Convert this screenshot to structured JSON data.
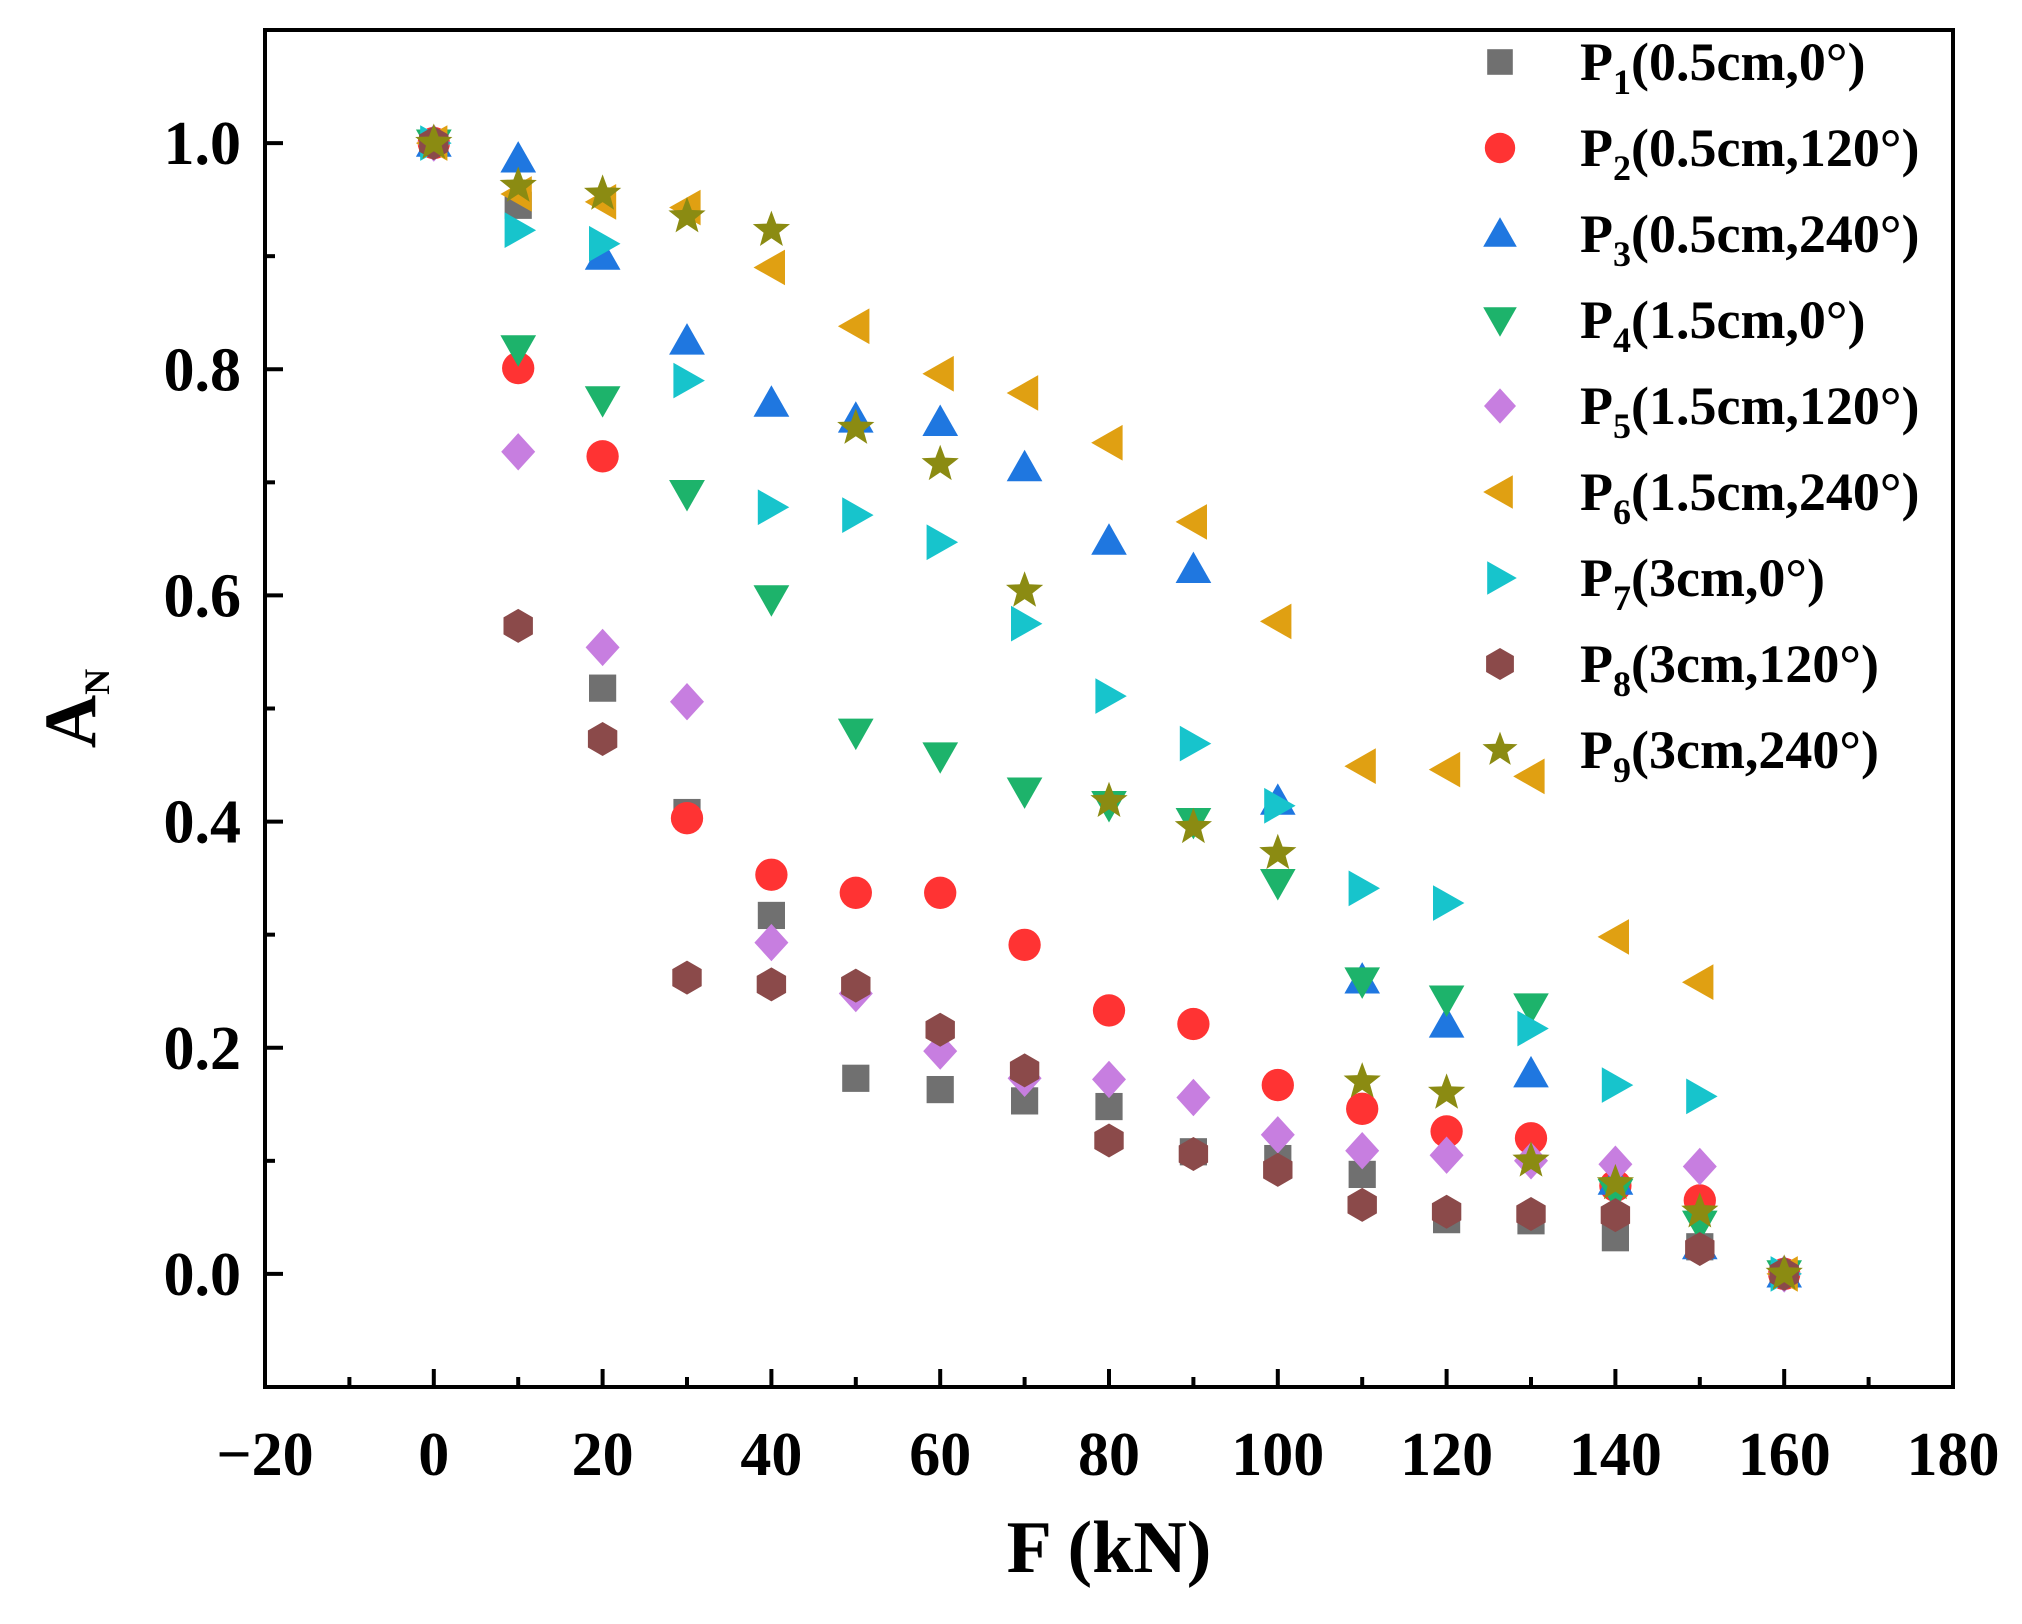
{
  "chart_data": {
    "type": "scatter",
    "xlabel": "F (kN)",
    "ylabel": {
      "main": "A",
      "sub": "N"
    },
    "xlim": [
      -20,
      180
    ],
    "ylim": [
      -0.1,
      1.1
    ],
    "x_ticks": [
      -20,
      0,
      20,
      40,
      60,
      80,
      100,
      120,
      140,
      160,
      180
    ],
    "x_tick_labels": [
      "−20",
      "0",
      "20",
      "40",
      "60",
      "80",
      "100",
      "120",
      "140",
      "160",
      "180"
    ],
    "y_ticks": [
      0.0,
      0.2,
      0.4,
      0.6,
      0.8,
      1.0
    ],
    "y_tick_labels": [
      "0.0",
      "0.2",
      "0.4",
      "0.6",
      "0.8",
      "1.0"
    ],
    "grid": false,
    "legend_position": "top-right",
    "series": [
      {
        "name": "P1(0.5cm,0°)",
        "label_main": "P",
        "label_sub": "1",
        "label_rest": "(0.5cm,0°)",
        "marker": "square",
        "color": "#707070",
        "x": [
          0,
          10,
          20,
          30,
          40,
          50,
          60,
          70,
          80,
          90,
          100,
          110,
          120,
          130,
          140,
          150,
          160
        ],
        "y": [
          1.0,
          0.945,
          0.518,
          0.408,
          0.317,
          0.173,
          0.163,
          0.153,
          0.148,
          0.108,
          0.102,
          0.088,
          0.048,
          0.047,
          0.032,
          0.024,
          0.0
        ]
      },
      {
        "name": "P2(0.5cm,120°)",
        "label_main": "P",
        "label_sub": "2",
        "label_rest": "(0.5cm,120°)",
        "marker": "circle",
        "color": "#ff3333",
        "x": [
          0,
          10,
          20,
          30,
          40,
          50,
          60,
          70,
          80,
          90,
          100,
          110,
          120,
          130,
          140,
          150,
          160
        ],
        "y": [
          1.0,
          0.801,
          0.723,
          0.403,
          0.353,
          0.337,
          0.337,
          0.291,
          0.233,
          0.221,
          0.167,
          0.146,
          0.126,
          0.12,
          0.078,
          0.065,
          0.0
        ]
      },
      {
        "name": "P3(0.5cm,240°)",
        "label_main": "P",
        "label_sub": "3",
        "label_rest": "(0.5cm,240°)",
        "marker": "triangle-up",
        "color": "#1f77e0",
        "x": [
          0,
          10,
          20,
          30,
          40,
          50,
          60,
          70,
          80,
          90,
          100,
          110,
          120,
          130,
          140,
          150,
          160
        ],
        "y": [
          1.0,
          0.986,
          0.9,
          0.825,
          0.77,
          0.756,
          0.753,
          0.713,
          0.648,
          0.623,
          0.418,
          0.26,
          0.221,
          0.177,
          0.082,
          0.025,
          0.0
        ]
      },
      {
        "name": "P4(1.5cm,0°)",
        "label_main": "P",
        "label_sub": "4",
        "label_rest": "(1.5cm,0°)",
        "marker": "triangle-down",
        "color": "#1db36b",
        "x": [
          0,
          10,
          20,
          30,
          40,
          50,
          60,
          70,
          80,
          90,
          100,
          110,
          120,
          130,
          140,
          150,
          160
        ],
        "y": [
          1.0,
          0.818,
          0.773,
          0.69,
          0.597,
          0.479,
          0.458,
          0.427,
          0.415,
          0.4,
          0.346,
          0.259,
          0.243,
          0.236,
          0.072,
          0.044,
          0.0
        ]
      },
      {
        "name": "P5(1.5cm,120°)",
        "label_main": "P",
        "label_sub": "5",
        "label_rest": "(1.5cm,120°)",
        "marker": "diamond",
        "color": "#c77ee0",
        "x": [
          0,
          10,
          20,
          30,
          40,
          50,
          60,
          70,
          80,
          90,
          100,
          110,
          120,
          130,
          140,
          150,
          160
        ],
        "y": [
          1.0,
          0.727,
          0.554,
          0.506,
          0.293,
          0.248,
          0.197,
          0.173,
          0.172,
          0.156,
          0.123,
          0.109,
          0.105,
          0.1,
          0.097,
          0.095,
          0.0
        ]
      },
      {
        "name": "P6(1.5cm,240°)",
        "label_main": "P",
        "label_sub": "6",
        "label_rest": "(1.5cm,240°)",
        "marker": "triangle-left",
        "color": "#e0a012",
        "x": [
          0,
          10,
          20,
          30,
          40,
          50,
          60,
          70,
          80,
          90,
          100,
          110,
          120,
          130,
          140,
          150,
          160
        ],
        "y": [
          1.0,
          0.955,
          0.948,
          0.943,
          0.89,
          0.838,
          0.796,
          0.779,
          0.735,
          0.665,
          0.577,
          0.449,
          0.446,
          0.44,
          0.298,
          0.258,
          0.0
        ]
      },
      {
        "name": "P7(3cm,0°)",
        "label_main": "P",
        "label_sub": "7",
        "label_rest": "(3cm,0°)",
        "marker": "triangle-right",
        "color": "#17c4cc",
        "x": [
          0,
          10,
          20,
          30,
          40,
          50,
          60,
          70,
          80,
          90,
          100,
          110,
          120,
          130,
          140,
          150,
          160
        ],
        "y": [
          1.0,
          0.923,
          0.911,
          0.79,
          0.678,
          0.671,
          0.647,
          0.575,
          0.511,
          0.469,
          0.414,
          0.341,
          0.328,
          0.217,
          0.167,
          0.157,
          0.0
        ]
      },
      {
        "name": "P8(3cm,120°)",
        "label_main": "P",
        "label_sub": "8",
        "label_rest": "(3cm,120°)",
        "marker": "hexagon",
        "color": "#8b4a4a",
        "x": [
          0,
          10,
          20,
          30,
          40,
          50,
          60,
          70,
          80,
          90,
          100,
          110,
          120,
          130,
          140,
          150,
          160
        ],
        "y": [
          1.0,
          0.573,
          0.473,
          0.262,
          0.256,
          0.255,
          0.216,
          0.18,
          0.118,
          0.106,
          0.092,
          0.061,
          0.055,
          0.053,
          0.052,
          0.022,
          0.0
        ]
      },
      {
        "name": "P9(3cm,240°)",
        "label_main": "P",
        "label_sub": "9",
        "label_rest": "(3cm,240°)",
        "marker": "star",
        "color": "#8b8b12",
        "x": [
          0,
          10,
          20,
          30,
          40,
          50,
          60,
          70,
          80,
          90,
          100,
          110,
          120,
          130,
          140,
          150,
          160
        ],
        "y": [
          1.0,
          0.962,
          0.955,
          0.935,
          0.923,
          0.748,
          0.716,
          0.604,
          0.418,
          0.395,
          0.372,
          0.17,
          0.16,
          0.1,
          0.08,
          0.055,
          0.0
        ]
      }
    ]
  }
}
